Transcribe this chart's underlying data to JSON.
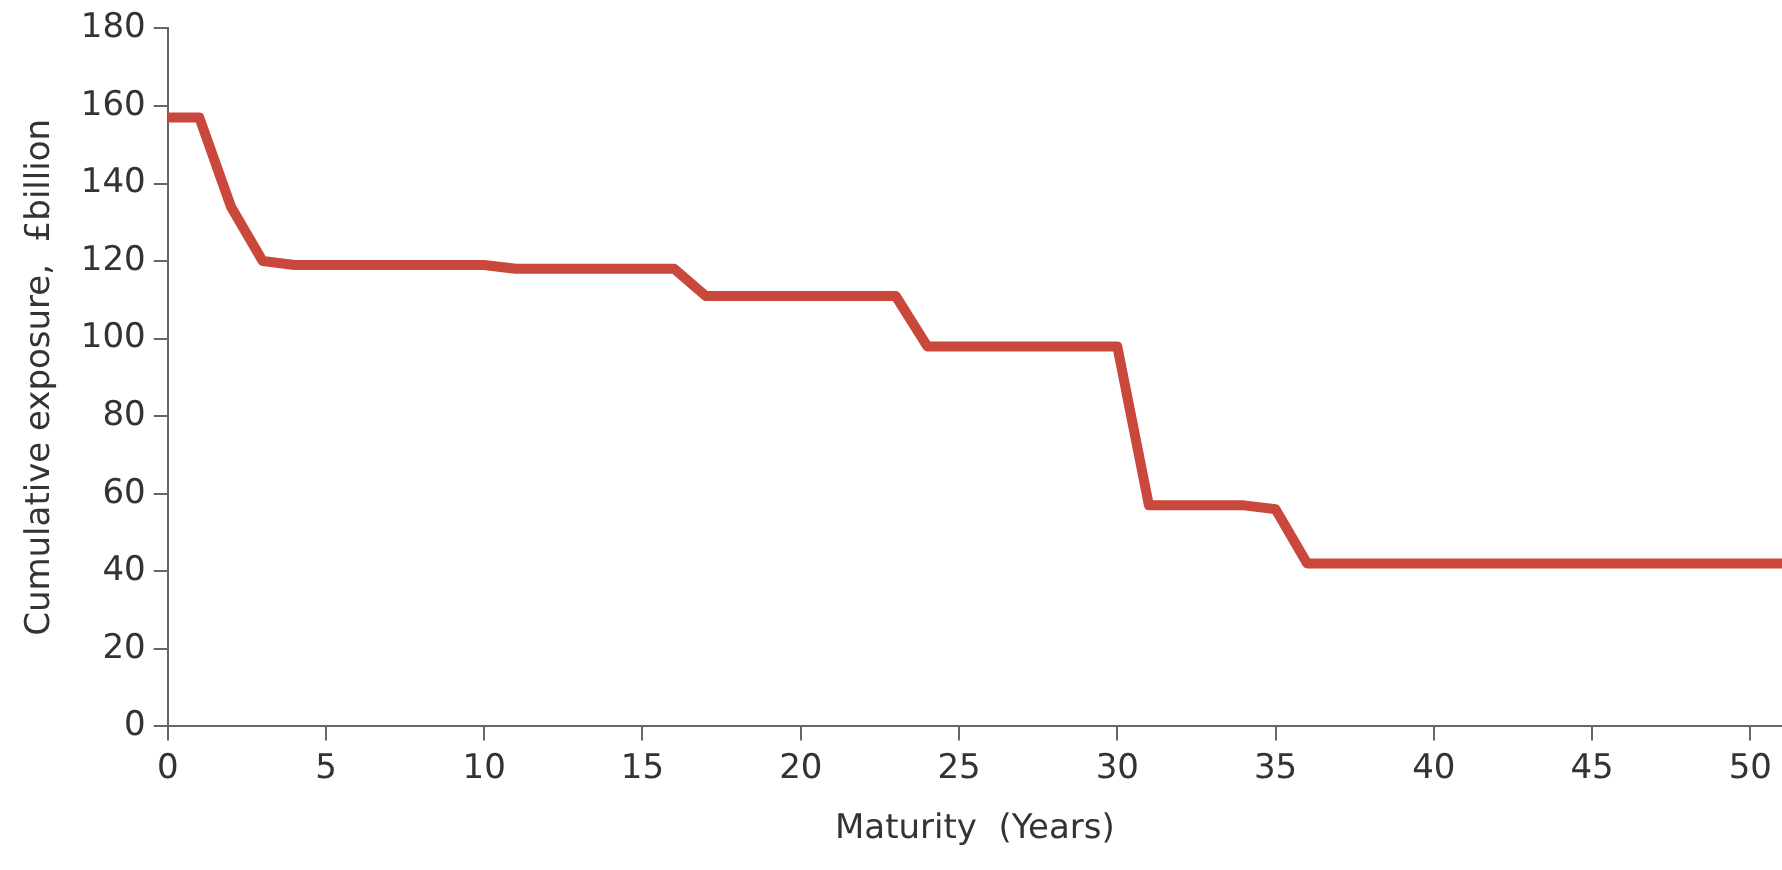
{
  "chart_data": {
    "type": "line",
    "xlabel": "Maturity  (Years)",
    "ylabel": "Cumulative exposure,  £billion",
    "x": [
      0,
      1,
      2,
      3,
      4,
      10,
      11,
      16,
      17,
      23,
      24,
      30,
      31,
      34,
      35,
      36,
      51
    ],
    "series": [
      {
        "color": "#c9473b",
        "values": [
          157,
          157,
          134,
          120,
          119,
          119,
          118,
          118,
          111,
          111,
          98,
          98,
          57,
          57,
          56,
          42,
          42
        ]
      }
    ],
    "xlim": [
      0,
      51
    ],
    "xticks": [
      0,
      5,
      10,
      15,
      20,
      25,
      30,
      35,
      40,
      45,
      50
    ],
    "ylim": [
      0,
      180
    ],
    "yticks": [
      0,
      20,
      40,
      60,
      80,
      100,
      120,
      140,
      160,
      180
    ],
    "grid": false,
    "legend": false,
    "marker": "none",
    "line_style": "solid"
  }
}
